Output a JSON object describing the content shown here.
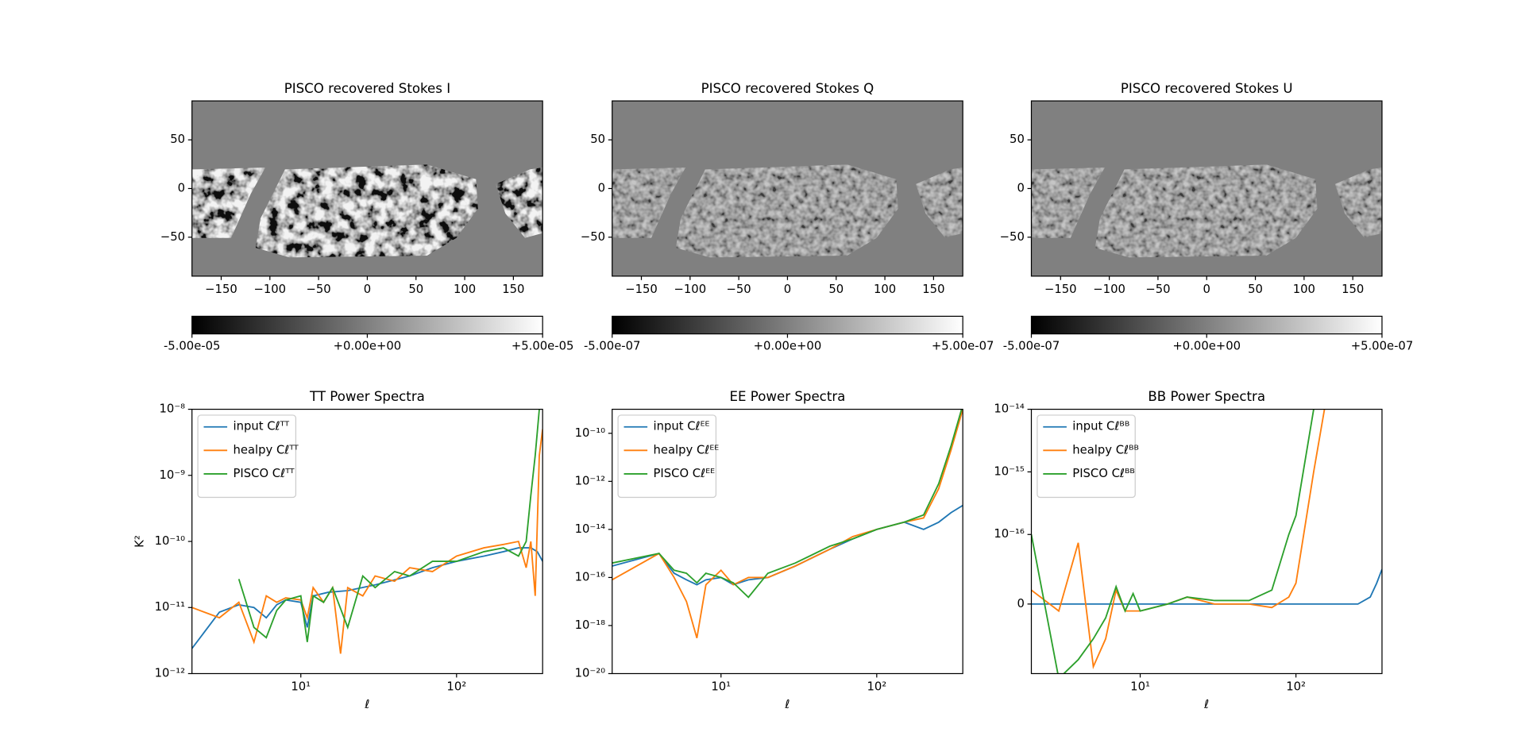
{
  "chart_data": [
    {
      "type": "image",
      "title": "PISCO recovered Stokes I",
      "xlim": [
        -180,
        180
      ],
      "ylim": [
        -90,
        90
      ],
      "xticks": [
        {
          "value": -150,
          "label": "−150"
        },
        {
          "value": -100,
          "label": "−100"
        },
        {
          "value": -50,
          "label": "−50"
        },
        0,
        50,
        100,
        150
      ],
      "yticks": [
        {
          "value": -50,
          "label": "−50"
        },
        0,
        50
      ],
      "cmap": "gray",
      "clim": [
        -5e-05,
        5e-05
      ],
      "cticks": [
        {
          "value": -5e-05,
          "label": "-5.00e-05"
        },
        {
          "value": 0,
          "label": "+0.00e+00"
        },
        {
          "value": 5e-05,
          "label": "+5.00e-05"
        }
      ]
    },
    {
      "type": "image",
      "title": "PISCO recovered Stokes Q",
      "xlim": [
        -180,
        180
      ],
      "ylim": [
        -90,
        90
      ],
      "xticks": [
        {
          "value": -150,
          "label": "−150"
        },
        {
          "value": -100,
          "label": "−100"
        },
        {
          "value": -50,
          "label": "−50"
        },
        0,
        50,
        100,
        150
      ],
      "yticks": [
        {
          "value": -50,
          "label": "−50"
        },
        0,
        50
      ],
      "cmap": "gray",
      "clim": [
        -5e-07,
        5e-07
      ],
      "cticks": [
        {
          "value": -5e-07,
          "label": "-5.00e-07"
        },
        {
          "value": 0,
          "label": "+0.00e+00"
        },
        {
          "value": 5e-07,
          "label": "+5.00e-07"
        }
      ]
    },
    {
      "type": "image",
      "title": "PISCO recovered Stokes U",
      "xlim": [
        -180,
        180
      ],
      "ylim": [
        -90,
        90
      ],
      "xticks": [
        {
          "value": -150,
          "label": "−150"
        },
        {
          "value": -100,
          "label": "−100"
        },
        {
          "value": -50,
          "label": "−50"
        },
        0,
        50,
        100,
        150
      ],
      "yticks": [
        {
          "value": -50,
          "label": "−50"
        },
        0,
        50
      ],
      "cmap": "gray",
      "clim": [
        -5e-07,
        5e-07
      ],
      "cticks": [
        {
          "value": -5e-07,
          "label": "-5.00e-07"
        },
        {
          "value": 0,
          "label": "+0.00e+00"
        },
        {
          "value": 5e-07,
          "label": "+5.00e-07"
        }
      ]
    },
    {
      "type": "line",
      "title": "TT Power Spectra",
      "x_label": "ℓ",
      "y_label": "K²",
      "xscale": "log",
      "yscale": "log",
      "legend": "upper left",
      "xlim": [
        2,
        357
      ],
      "ylim": [
        1e-12,
        1e-08
      ],
      "xticks": [
        {
          "value": 10,
          "label": "10¹"
        },
        {
          "value": 100,
          "label": "10²"
        }
      ],
      "yticks": [
        {
          "value": 1e-12,
          "label": "10⁻¹²"
        },
        {
          "value": 1e-11,
          "label": "10⁻¹¹"
        },
        {
          "value": 1e-10,
          "label": "10⁻¹⁰"
        },
        {
          "value": 1e-09,
          "label": "10⁻⁹"
        },
        {
          "value": 1e-08,
          "label": "10⁻⁸"
        }
      ],
      "series": [
        {
          "name": "input Cℓᵀᵀ",
          "color": "#1f77b4",
          "x": [
            2,
            3,
            4,
            5,
            6,
            7,
            8,
            10,
            11,
            12,
            15,
            20,
            30,
            50,
            70,
            100,
            150,
            200,
            250,
            300,
            330,
            357
          ],
          "values": [
            2.4e-12,
            8.5e-12,
            1.1e-11,
            1e-11,
            7e-12,
            1.1e-11,
            1.3e-11,
            1.2e-11,
            5e-12,
            1.5e-11,
            1.7e-11,
            1.8e-11,
            2.2e-11,
            3e-11,
            4e-11,
            5e-11,
            6e-11,
            7e-11,
            8e-11,
            8e-11,
            7e-11,
            5e-11
          ]
        },
        {
          "name": "healpy Cℓᵀᵀ",
          "color": "#ff7f0e",
          "x": [
            2,
            3,
            4,
            5,
            6,
            7,
            8,
            10,
            11,
            12,
            14,
            16,
            18,
            20,
            25,
            30,
            40,
            50,
            70,
            100,
            150,
            200,
            250,
            280,
            300,
            320,
            340,
            357
          ],
          "values": [
            1e-11,
            7e-12,
            1.2e-11,
            3e-12,
            1.5e-11,
            1.2e-11,
            1.4e-11,
            1.3e-11,
            7e-12,
            2e-11,
            1.2e-11,
            2e-11,
            2e-12,
            2e-11,
            1.5e-11,
            3e-11,
            2.5e-11,
            4e-11,
            3.5e-11,
            6e-11,
            8e-11,
            9e-11,
            1e-10,
            4e-11,
            1e-10,
            1.5e-11,
            2e-09,
            5e-09
          ]
        },
        {
          "name": "PISCO Cℓᵀᵀ",
          "color": "#2ca02c",
          "x": [
            4,
            5,
            6,
            7,
            8,
            10,
            11,
            12,
            14,
            16,
            20,
            25,
            30,
            40,
            50,
            70,
            100,
            150,
            200,
            250,
            280,
            300,
            320,
            340,
            357
          ],
          "values": [
            2.7e-11,
            5e-12,
            3.5e-12,
            9e-12,
            1.3e-11,
            1.5e-11,
            3e-12,
            1.5e-11,
            1.2e-11,
            2e-11,
            5e-12,
            3e-11,
            2e-11,
            3.5e-11,
            3e-11,
            5e-11,
            5e-11,
            7e-11,
            8e-11,
            6e-11,
            1e-10,
            5e-10,
            2e-09,
            1e-08,
            1.2e-08
          ]
        }
      ]
    },
    {
      "type": "line",
      "title": "EE Power Spectra",
      "x_label": "ℓ",
      "xscale": "log",
      "yscale": "log",
      "legend": "upper left",
      "xlim": [
        2,
        357
      ],
      "ylim": [
        1e-20,
        1e-09
      ],
      "xticks": [
        {
          "value": 10,
          "label": "10¹"
        },
        {
          "value": 100,
          "label": "10²"
        }
      ],
      "yticks": [
        {
          "value": 1e-20,
          "label": "10⁻²⁰"
        },
        {
          "value": 1e-18,
          "label": "10⁻¹⁸"
        },
        {
          "value": 1e-16,
          "label": "10⁻¹⁶"
        },
        {
          "value": 1e-14,
          "label": "10⁻¹⁴"
        },
        {
          "value": 1e-12,
          "label": "10⁻¹²"
        },
        {
          "value": 1e-10,
          "label": "10⁻¹⁰"
        }
      ],
      "series": [
        {
          "name": "input Cℓᴱᴱ",
          "color": "#1f77b4",
          "x": [
            2,
            4,
            5,
            6,
            7,
            8,
            10,
            12,
            15,
            20,
            30,
            50,
            70,
            100,
            150,
            200,
            250,
            300,
            357
          ],
          "values": [
            3e-16,
            1e-15,
            1.5e-16,
            8e-17,
            5e-17,
            8e-17,
            1e-16,
            5e-17,
            8e-17,
            1e-16,
            3e-16,
            1.5e-15,
            4e-15,
            1e-14,
            2e-14,
            1e-14,
            2e-14,
            5e-14,
            1e-13
          ]
        },
        {
          "name": "healpy Cℓᴱᴱ",
          "color": "#ff7f0e",
          "x": [
            2,
            4,
            5,
            6,
            7,
            8,
            10,
            12,
            15,
            20,
            30,
            50,
            70,
            100,
            150,
            200,
            250,
            300,
            357
          ],
          "values": [
            8e-17,
            1e-15,
            1e-16,
            1e-17,
            3e-19,
            5e-17,
            2e-16,
            5e-17,
            1e-16,
            1e-16,
            3e-16,
            1.5e-15,
            5e-15,
            1e-14,
            2e-14,
            3e-14,
            5e-13,
            2e-11,
            1e-09
          ]
        },
        {
          "name": "PISCO Cℓᴱᴱ",
          "color": "#2ca02c",
          "x": [
            2,
            4,
            5,
            6,
            7,
            8,
            10,
            12,
            15,
            20,
            30,
            50,
            70,
            100,
            150,
            200,
            250,
            300,
            357
          ],
          "values": [
            4e-16,
            1e-15,
            2e-16,
            1.5e-16,
            6e-17,
            1.5e-16,
            1e-16,
            6e-17,
            1.5e-17,
            1.5e-16,
            4e-16,
            2e-15,
            4e-15,
            1e-14,
            2e-14,
            4e-14,
            8e-13,
            3e-11,
            1.5e-09
          ]
        }
      ]
    },
    {
      "type": "line",
      "title": "BB Power Spectra",
      "x_label": "ℓ",
      "xscale": "log",
      "yscale": "symlog",
      "linthresh": 1e-16,
      "legend": "upper left",
      "xlim": [
        2,
        357
      ],
      "ylim": [
        -1e-16,
        1e-14
      ],
      "xticks": [
        {
          "value": 10,
          "label": "10¹"
        },
        {
          "value": 100,
          "label": "10²"
        }
      ],
      "yticks": [
        0,
        {
          "value": 1e-16,
          "label": "10⁻¹⁶"
        },
        {
          "value": 1e-15,
          "label": "10⁻¹⁵"
        },
        {
          "value": 1e-14,
          "label": "10⁻¹⁴"
        }
      ],
      "series": [
        {
          "name": "input Cℓᴮᴮ",
          "color": "#1f77b4",
          "x": [
            2,
            10,
            100,
            250,
            300,
            330,
            357
          ],
          "values": [
            0,
            0,
            0,
            0,
            1e-17,
            3e-17,
            5e-17
          ]
        },
        {
          "name": "healpy Cℓᴮᴮ",
          "color": "#ff7f0e",
          "x": [
            2,
            3,
            4,
            5,
            6,
            7,
            8,
            10,
            15,
            20,
            30,
            50,
            70,
            90,
            100,
            130,
            160
          ],
          "values": [
            2e-17,
            -1e-17,
            8.8e-17,
            -9e-17,
            -5e-17,
            2e-17,
            -1e-17,
            -1e-17,
            0,
            1e-17,
            0,
            0,
            -5e-18,
            1e-17,
            3e-17,
            1e-15,
            2e-14
          ]
        },
        {
          "name": "PISCO Cℓᴮᴮ",
          "color": "#2ca02c",
          "x": [
            2,
            3,
            4,
            5,
            6,
            7,
            8,
            9,
            10,
            15,
            20,
            30,
            50,
            70,
            90,
            100,
            130
          ],
          "values": [
            1e-16,
            -1.2e-16,
            -8e-17,
            -5e-17,
            -2e-17,
            2.5e-17,
            -1e-17,
            1.5e-17,
            -1e-17,
            0,
            1e-17,
            5e-18,
            5e-18,
            2e-17,
            1e-16,
            2e-16,
            1e-14
          ]
        }
      ]
    }
  ]
}
